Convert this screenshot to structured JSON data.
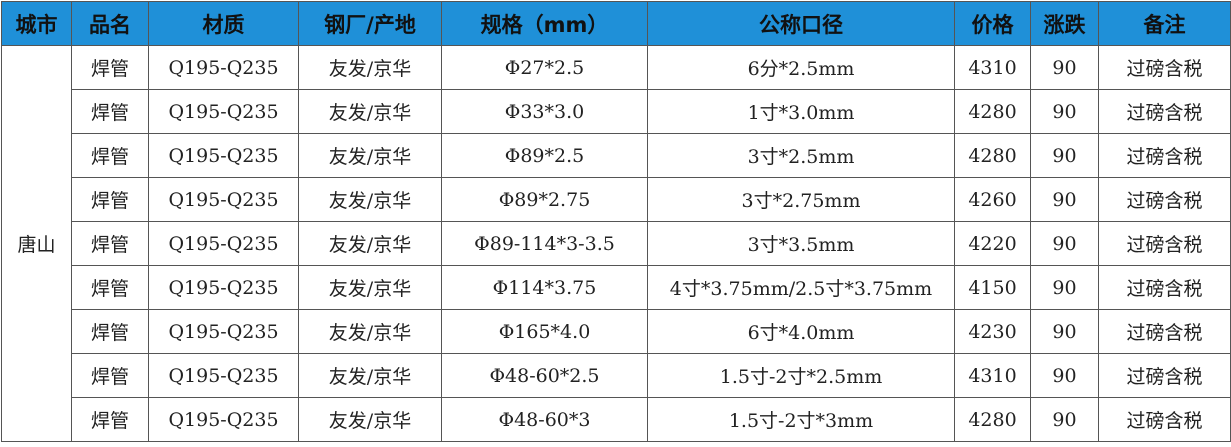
{
  "table": {
    "header": [
      "城市",
      "品名",
      "材质",
      "钢厂/产地",
      "规格（mm）",
      "公称口径",
      "价格",
      "涨跌",
      "备注"
    ],
    "city": "唐山",
    "rows": [
      [
        "焊管",
        "Q195-Q235",
        "友发/京华",
        "Φ27*2.5",
        "6分*2.5mm",
        4310,
        90,
        "过磅含税"
      ],
      [
        "焊管",
        "Q195-Q235",
        "友发/京华",
        "Φ33*3.0",
        "1寸*3.0mm",
        4280,
        90,
        "过磅含税"
      ],
      [
        "焊管",
        "Q195-Q235",
        "友发/京华",
        "Φ89*2.5",
        "3寸*2.5mm",
        4280,
        90,
        "过磅含税"
      ],
      [
        "焊管",
        "Q195-Q235",
        "友发/京华",
        "Φ89*2.75",
        "3寸*2.75mm",
        4260,
        90,
        "过磅含税"
      ],
      [
        "焊管",
        "Q195-Q235",
        "友发/京华",
        "Φ89-114*3-3.5",
        "3寸*3.5mm",
        4220,
        90,
        "过磅含税"
      ],
      [
        "焊管",
        "Q195-Q235",
        "友发/京华",
        "Φ114*3.75",
        "4寸*3.75mm/2.5寸*3.75mm",
        4150,
        90,
        "过磅含税"
      ],
      [
        "焊管",
        "Q195-Q235",
        "友发/京华",
        "Φ165*4.0",
        "6寸*4.0mm",
        4230,
        90,
        "过磅含税"
      ],
      [
        "焊管",
        "Q195-Q235",
        "友发/京华",
        "Φ48-60*2.5",
        "1.5寸-2寸*2.5mm",
        4310,
        90,
        "过磅含税"
      ],
      [
        "焊管",
        "Q195-Q235",
        "友发/京华",
        "Φ48-60*3",
        "1.5寸-2寸*3mm",
        4280,
        90,
        "过磅含税"
      ]
    ]
  }
}
